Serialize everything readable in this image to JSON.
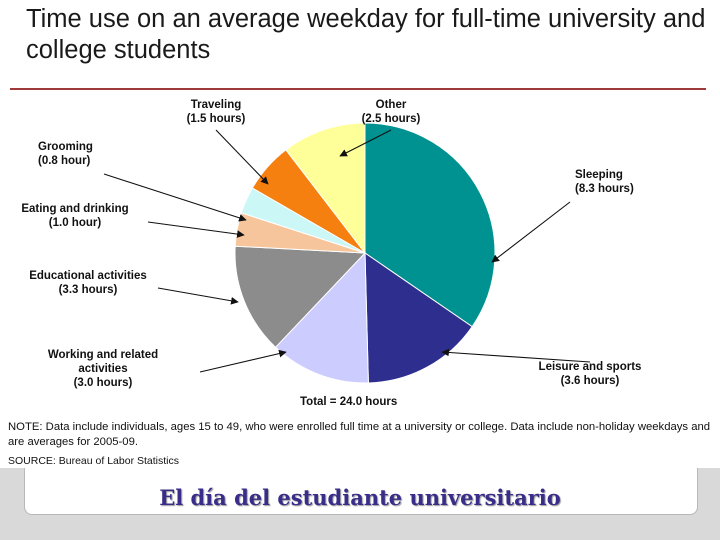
{
  "title": "Time use on an average weekday for full-time university and college students",
  "chart_data": {
    "type": "pie",
    "title": "Time use on an average weekday for full-time university and college students",
    "unit": "hours",
    "total_label": "Total = 24.0 hours",
    "slices": [
      {
        "name": "Sleeping",
        "value": 8.3,
        "value_label": "(8.3 hours)",
        "color": "#009191"
      },
      {
        "name": "Leisure and sports",
        "value": 3.6,
        "value_label": "(3.6 hours)",
        "color": "#2e2e8f"
      },
      {
        "name": "Working and related activities",
        "value": 3.0,
        "value_label": "(3.0 hours)",
        "color": "#ccccff"
      },
      {
        "name": "Educational activities",
        "value": 3.3,
        "value_label": "(3.3 hours)",
        "color": "#8c8c8c"
      },
      {
        "name": "Eating and drinking",
        "value": 1.0,
        "value_label": "(1.0 hour)",
        "color": "#f7c59b"
      },
      {
        "name": "Grooming",
        "value": 0.8,
        "value_label": "(0.8 hour)",
        "color": "#ccf7f7"
      },
      {
        "name": "Traveling",
        "value": 1.5,
        "value_label": "(1.5 hours)",
        "color": "#f57f0f"
      },
      {
        "name": "Other",
        "value": 2.5,
        "value_label": "(2.5 hours)",
        "color": "#ffff99"
      }
    ]
  },
  "note": "NOTE: Data include individuals, ages 15 to 49, who were enrolled full time at a university or college. Data include non-holiday weekdays and are averages for 2005-09.",
  "source": "SOURCE: Bureau of Labor Statistics",
  "subtitle": "El día del estudiante universitario"
}
